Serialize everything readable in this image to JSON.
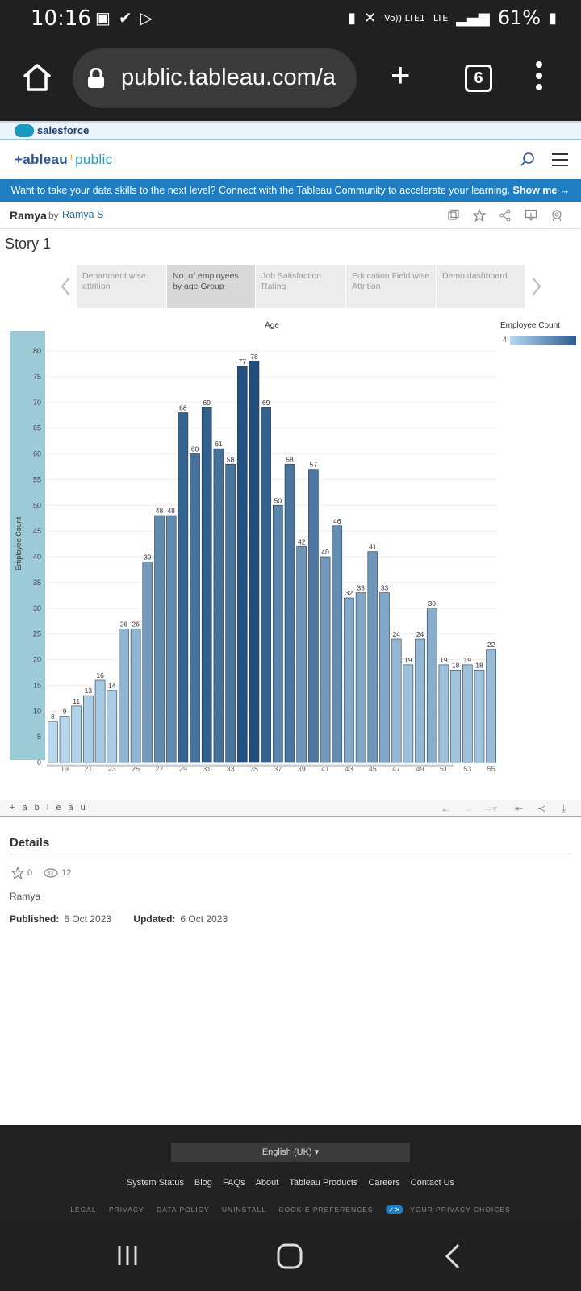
{
  "status_bar": {
    "time": "10:16",
    "network": "Vo)) LTE1",
    "lte": "LTE",
    "battery": "61%"
  },
  "browser": {
    "url": "public.tableau.com/a",
    "tab_count": "6"
  },
  "salesforce_bar": {
    "label": "salesforce"
  },
  "tableau_header": {
    "logo_left": "+ableau",
    "logo_right": "public"
  },
  "promo": {
    "text": "Want to take your data skills to the next level? Connect with the Tableau Community to accelerate your learning.",
    "cta": "Show me →"
  },
  "author": {
    "title": "Ramya",
    "by": "by",
    "name": "Ramya S"
  },
  "story": {
    "title": "Story 1",
    "tabs": [
      {
        "label": "Department wise attrition"
      },
      {
        "label": "No. of employees by age Group"
      },
      {
        "label": "Job Satisfaction Rating"
      },
      {
        "label": "Education Field wise Attrition"
      },
      {
        "label": "Demo dashboard"
      }
    ]
  },
  "legend": {
    "title": "Employee Count",
    "min": "4"
  },
  "chart_data": {
    "type": "bar",
    "title": "Age",
    "ylabel": "Employee Count",
    "xlabel": "",
    "ylim": [
      0,
      80
    ],
    "y_ticks": [
      0,
      5,
      10,
      15,
      20,
      25,
      30,
      35,
      40,
      45,
      50,
      55,
      60,
      65,
      70,
      75,
      80
    ],
    "x_tick_labels": [
      "19",
      "21",
      "23",
      "25",
      "27",
      "29",
      "31",
      "33",
      "35",
      "37",
      "39",
      "41",
      "43",
      "45",
      "47",
      "49",
      "51",
      "53",
      "55"
    ],
    "categories": [
      18,
      19,
      20,
      21,
      22,
      23,
      24,
      25,
      26,
      27,
      28,
      29,
      30,
      31,
      32,
      33,
      34,
      35,
      36,
      37,
      38,
      39,
      40,
      41,
      42,
      43,
      44,
      45,
      46,
      47,
      48,
      49,
      50,
      51,
      52,
      53,
      54,
      55
    ],
    "values": [
      8,
      9,
      11,
      13,
      16,
      14,
      26,
      26,
      39,
      48,
      48,
      68,
      60,
      69,
      61,
      58,
      77,
      78,
      69,
      50,
      58,
      42,
      57,
      40,
      46,
      32,
      33,
      41,
      33,
      24,
      19,
      24,
      30,
      19,
      18,
      19,
      18,
      22
    ],
    "color_low": "#b7d8ee",
    "color_high": "#1f4e7e"
  },
  "tableau_toolbar": {
    "brand": "+ a b l e a u"
  },
  "details": {
    "title": "Details",
    "favorites": "0",
    "views": "12",
    "owner": "Ramya",
    "published_label": "Published:",
    "published_date": "6 Oct 2023",
    "updated_label": "Updated:",
    "updated_date": "6 Oct 2023"
  },
  "footer": {
    "language": "English (UK)",
    "links": [
      "System Status",
      "Blog",
      "FAQs",
      "About",
      "Tableau Products",
      "Careers",
      "Contact Us"
    ],
    "legal": [
      "LEGAL",
      "PRIVACY",
      "DATA POLICY",
      "UNINSTALL",
      "COOKIE PREFERENCES",
      "YOUR PRIVACY CHOICES"
    ]
  }
}
